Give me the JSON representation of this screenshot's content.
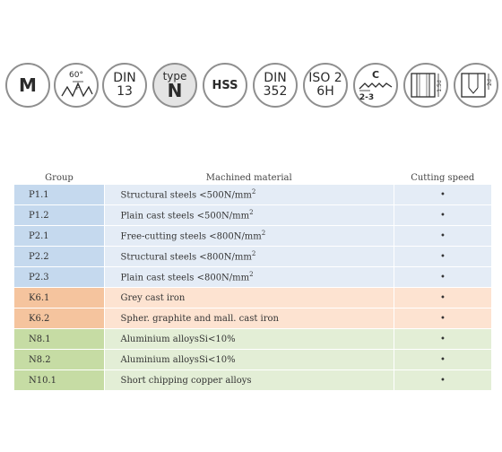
{
  "icons": [
    {
      "name": "metric-thread",
      "text": "M"
    },
    {
      "name": "thread-angle",
      "angle": "60°",
      "pitch": "P"
    },
    {
      "name": "din13",
      "line1": "DIN",
      "line2": "13"
    },
    {
      "name": "type-n",
      "line1": "type",
      "line2": "N"
    },
    {
      "name": "hss",
      "text": "HSS"
    },
    {
      "name": "din352",
      "line1": "DIN",
      "line2": "352"
    },
    {
      "name": "iso2-6h",
      "line1": "ISO 2",
      "line2": "6H"
    },
    {
      "name": "chamfer",
      "top": "C",
      "bottom": "2-3"
    },
    {
      "name": "through-hole",
      "dim": "1.5d"
    },
    {
      "name": "blind-hole",
      "dim": "2d"
    }
  ],
  "table": {
    "headers": {
      "group": "Group",
      "material": "Machined material",
      "speed": "Cutting speed"
    },
    "rows": [
      {
        "group": "P1.1",
        "material": "Structural steels <500N/mm",
        "sup": "2",
        "speed": "•"
      },
      {
        "group": "P1.2",
        "material": "Plain cast steels <500N/mm",
        "sup": "2",
        "speed": "•"
      },
      {
        "group": "P2.1",
        "material": "Free-cutting steels <800N/mm",
        "sup": "2",
        "speed": "•"
      },
      {
        "group": "P2.2",
        "material": "Structural steels <800N/mm",
        "sup": "2",
        "speed": "•"
      },
      {
        "group": "P2.3",
        "material": "Plain cast steels <800N/mm",
        "sup": "2",
        "speed": "•"
      },
      {
        "group": "K6.1",
        "material": "Grey cast iron",
        "speed": "•"
      },
      {
        "group": "K6.2",
        "material": "Spher. graphite and mall. cast iron",
        "speed": "•"
      },
      {
        "group": "N8.1",
        "material": "Aluminium alloysSi<10%",
        "speed": "•"
      },
      {
        "group": "N8.2",
        "material": "Aluminium alloysSi<10%",
        "speed": "•"
      },
      {
        "group": "N10.1",
        "material": "Short chipping copper alloys",
        "speed": "•"
      }
    ]
  },
  "colors": {
    "blue_group": "#c5d9ee",
    "blue_row": "#e4ecf6",
    "orange_group": "#f5c49e",
    "orange_row": "#fde3d1",
    "green_group": "#c6dca4",
    "green_row": "#e3eed6"
  }
}
